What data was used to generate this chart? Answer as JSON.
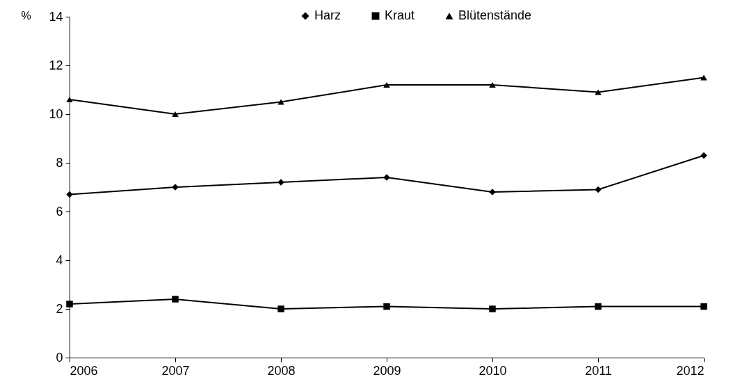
{
  "chart_data": {
    "type": "line",
    "ylabel": "%",
    "x": [
      2006,
      2007,
      2008,
      2009,
      2010,
      2011,
      2012
    ],
    "xlim": [
      2006,
      2012
    ],
    "xticks": [
      2006,
      2007,
      2008,
      2009,
      2010,
      2011,
      2012
    ],
    "ylim": [
      0,
      14
    ],
    "yticks": [
      0,
      2,
      4,
      6,
      8,
      10,
      12,
      14
    ],
    "legend": "top",
    "line_style": "solid",
    "series": [
      {
        "name": "Harz",
        "color": "#000000",
        "marker": "diamond",
        "values": [
          6.7,
          7.0,
          7.2,
          7.4,
          6.8,
          6.9,
          8.3
        ]
      },
      {
        "name": "Kraut",
        "color": "#000000",
        "marker": "square",
        "values": [
          2.2,
          2.4,
          2.0,
          2.1,
          2.0,
          2.1,
          2.1
        ]
      },
      {
        "name": "Blütenstände",
        "color": "#000000",
        "marker": "triangle",
        "values": [
          10.6,
          10.0,
          10.5,
          11.2,
          11.2,
          10.9,
          11.5
        ]
      }
    ]
  }
}
